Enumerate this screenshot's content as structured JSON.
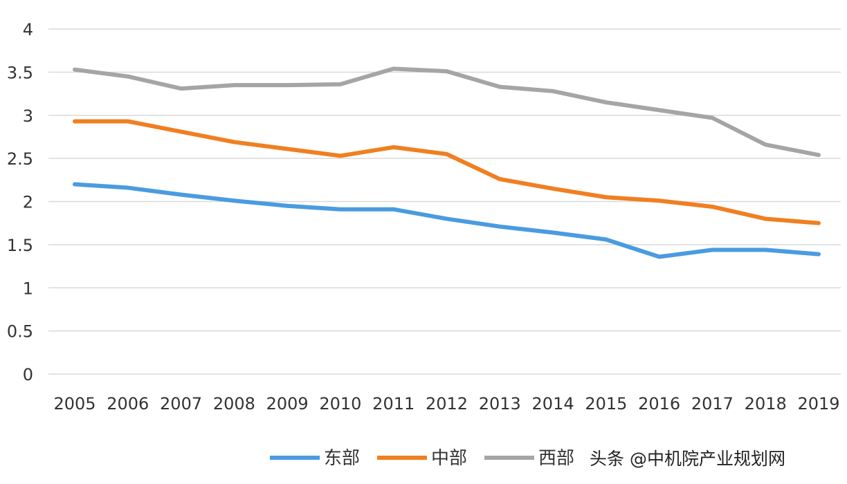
{
  "chart_data": {
    "type": "line",
    "title": "",
    "xlabel": "",
    "ylabel": "",
    "x": [
      "2005",
      "2006",
      "2007",
      "2008",
      "2009",
      "2010",
      "2011",
      "2012",
      "2013",
      "2014",
      "2015",
      "2016",
      "2017",
      "2018",
      "2019"
    ],
    "ylim": [
      0,
      4
    ],
    "yticks": [
      "0",
      "0.5",
      "1",
      "1.5",
      "2",
      "2.5",
      "3",
      "3.5",
      "4"
    ],
    "grid": true,
    "legend_position": "bottom",
    "series": [
      {
        "name": "东部",
        "color": "#4a9be0",
        "values": [
          2.2,
          2.16,
          2.08,
          2.01,
          1.95,
          1.91,
          1.91,
          1.8,
          1.71,
          1.64,
          1.56,
          1.36,
          1.44,
          1.44,
          1.39
        ]
      },
      {
        "name": "中部",
        "color": "#f07f21",
        "values": [
          2.93,
          2.93,
          2.81,
          2.69,
          2.61,
          2.53,
          2.63,
          2.55,
          2.26,
          2.15,
          2.05,
          2.01,
          1.94,
          1.8,
          1.75
        ]
      },
      {
        "name": "西部",
        "color": "#a5a5a5",
        "values": [
          3.53,
          3.45,
          3.31,
          3.35,
          3.35,
          3.36,
          3.54,
          3.51,
          3.33,
          3.28,
          3.15,
          3.06,
          2.97,
          2.66,
          2.54
        ]
      }
    ]
  },
  "watermark": "头条 @中机院产业规划网"
}
